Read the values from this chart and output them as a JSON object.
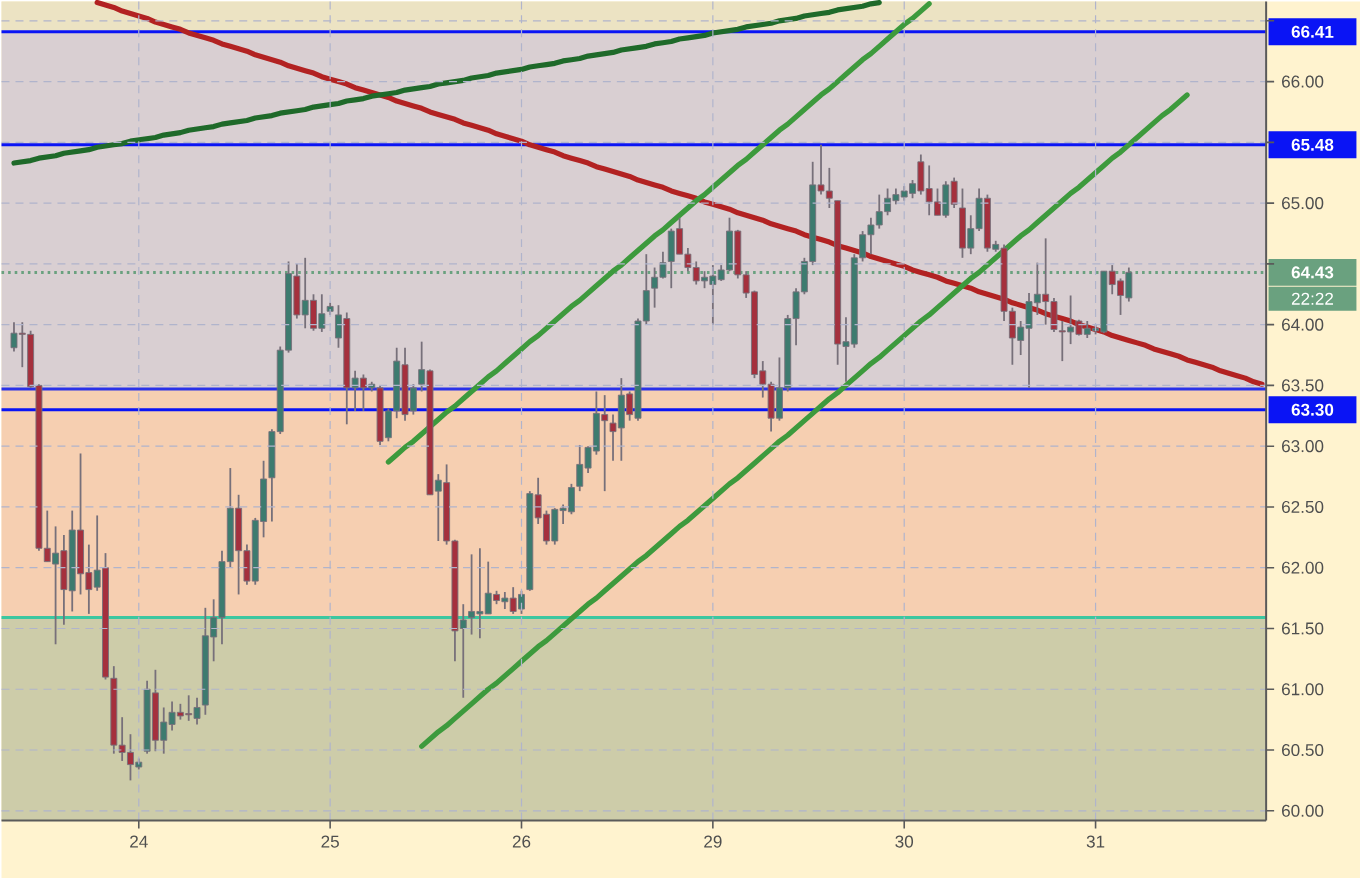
{
  "chart_data": {
    "type": "candlestick",
    "categories": [
      null,
      null,
      null,
      null,
      null,
      null,
      null,
      null,
      null,
      null,
      null,
      null,
      null,
      null,
      null,
      "24",
      null,
      null,
      null,
      null,
      null,
      null,
      null,
      null,
      null,
      null,
      null,
      null,
      null,
      null,
      null,
      null,
      null,
      null,
      null,
      null,
      null,
      null,
      "25",
      null,
      null,
      null,
      null,
      null,
      null,
      null,
      null,
      null,
      null,
      null,
      null,
      null,
      null,
      null,
      null,
      null,
      null,
      null,
      null,
      null,
      null,
      "26",
      null,
      null,
      null,
      null,
      null,
      null,
      null,
      null,
      null,
      null,
      null,
      null,
      null,
      null,
      null,
      null,
      null,
      null,
      null,
      null,
      null,
      null,
      "29",
      null,
      null,
      null,
      null,
      null,
      null,
      null,
      null,
      null,
      null,
      null,
      null,
      null,
      null,
      null,
      null,
      null,
      null,
      null,
      null,
      null,
      null,
      "30",
      null,
      null,
      null,
      null,
      null,
      null,
      null,
      null,
      null,
      null,
      null,
      null,
      null,
      null,
      null,
      null,
      null,
      null,
      null,
      null,
      null,
      null,
      "31",
      null,
      null,
      null,
      null,
      null,
      null,
      null,
      null,
      null,
      null,
      null,
      null,
      null,
      null,
      null,
      null,
      null,
      null,
      null,
      null
    ],
    "ohlc": [
      [
        63.81,
        64.02,
        63.78,
        63.93
      ],
      [
        63.93,
        64.02,
        63.65,
        63.92
      ],
      [
        63.92,
        63.95,
        63.48,
        63.49
      ],
      [
        63.5,
        63.51,
        62.14,
        62.16
      ],
      [
        62.16,
        62.47,
        62.05,
        62.05
      ],
      [
        62.03,
        62.34,
        61.37,
        62.12
      ],
      [
        62.14,
        62.27,
        61.53,
        61.82
      ],
      [
        61.81,
        62.47,
        61.64,
        62.31
      ],
      [
        62.31,
        62.94,
        61.78,
        61.95
      ],
      [
        61.96,
        62.19,
        61.62,
        61.82
      ],
      [
        61.84,
        62.43,
        61.81,
        61.98
      ],
      [
        62.0,
        62.12,
        61.08,
        61.1
      ],
      [
        61.09,
        61.19,
        60.47,
        60.54
      ],
      [
        60.54,
        60.77,
        60.41,
        60.48
      ],
      [
        60.48,
        60.63,
        60.25,
        60.38
      ],
      [
        60.36,
        60.43,
        60.34,
        60.4
      ],
      [
        60.49,
        61.07,
        60.47,
        61.0
      ],
      [
        60.97,
        61.16,
        60.49,
        60.58
      ],
      [
        60.58,
        60.85,
        60.47,
        60.73
      ],
      [
        60.71,
        60.9,
        60.66,
        60.81
      ],
      [
        60.81,
        60.88,
        60.75,
        60.78
      ],
      [
        60.8,
        60.95,
        60.74,
        60.79
      ],
      [
        60.76,
        60.93,
        60.71,
        60.85
      ],
      [
        60.87,
        61.67,
        60.79,
        61.44
      ],
      [
        61.43,
        61.74,
        61.23,
        61.59
      ],
      [
        61.59,
        62.14,
        61.37,
        62.05
      ],
      [
        62.05,
        62.82,
        62.0,
        62.49
      ],
      [
        62.49,
        62.6,
        61.78,
        62.14
      ],
      [
        62.14,
        62.19,
        61.86,
        61.89
      ],
      [
        61.89,
        62.41,
        61.86,
        62.39
      ],
      [
        62.38,
        62.88,
        62.25,
        62.73
      ],
      [
        62.74,
        63.14,
        62.38,
        63.12
      ],
      [
        63.12,
        63.82,
        63.1,
        63.79
      ],
      [
        63.79,
        64.52,
        63.77,
        64.42
      ],
      [
        64.4,
        64.5,
        64.05,
        64.08
      ],
      [
        64.08,
        64.55,
        63.97,
        64.2
      ],
      [
        64.2,
        64.25,
        63.95,
        63.97
      ],
      [
        63.97,
        64.25,
        63.94,
        64.09
      ],
      [
        64.11,
        64.18,
        64.08,
        64.15
      ],
      [
        63.89,
        64.16,
        63.81,
        64.08
      ],
      [
        64.05,
        64.1,
        63.18,
        63.48
      ],
      [
        63.48,
        63.62,
        63.29,
        63.56
      ],
      [
        63.56,
        63.59,
        63.29,
        63.48
      ],
      [
        63.48,
        63.53,
        63.45,
        63.51
      ],
      [
        63.48,
        63.5,
        63.01,
        63.04
      ],
      [
        63.07,
        63.31,
        63.04,
        63.29
      ],
      [
        63.29,
        63.81,
        63.23,
        63.7
      ],
      [
        63.67,
        63.81,
        63.21,
        63.26
      ],
      [
        63.29,
        63.51,
        63.26,
        63.48
      ],
      [
        63.51,
        63.86,
        63.45,
        63.63
      ],
      [
        63.62,
        63.63,
        62.6,
        62.6
      ],
      [
        62.63,
        62.77,
        62.22,
        62.72
      ],
      [
        62.7,
        62.85,
        62.19,
        62.22
      ],
      [
        62.22,
        62.23,
        61.23,
        61.48
      ],
      [
        61.5,
        61.7,
        60.93,
        61.57
      ],
      [
        61.59,
        62.11,
        61.45,
        61.64
      ],
      [
        61.62,
        62.16,
        61.42,
        61.64
      ],
      [
        61.62,
        62.05,
        61.62,
        61.79
      ],
      [
        61.78,
        61.81,
        61.7,
        61.73
      ],
      [
        61.72,
        61.8,
        61.66,
        61.75
      ],
      [
        61.75,
        61.84,
        61.62,
        61.64
      ],
      [
        61.66,
        61.81,
        61.62,
        61.78
      ],
      [
        61.82,
        62.63,
        61.81,
        62.61
      ],
      [
        62.6,
        62.74,
        62.36,
        62.41
      ],
      [
        62.44,
        62.47,
        62.19,
        62.22
      ],
      [
        62.22,
        62.49,
        62.19,
        62.48
      ],
      [
        62.47,
        62.52,
        62.36,
        62.49
      ],
      [
        62.46,
        62.69,
        62.44,
        62.66
      ],
      [
        62.67,
        63.01,
        62.63,
        62.85
      ],
      [
        62.82,
        63.0,
        62.78,
        62.99
      ],
      [
        62.96,
        63.45,
        62.93,
        63.27
      ],
      [
        63.26,
        63.42,
        62.63,
        63.21
      ],
      [
        63.19,
        63.26,
        62.88,
        63.12
      ],
      [
        63.15,
        63.56,
        62.88,
        63.42
      ],
      [
        63.43,
        63.45,
        63.21,
        63.26
      ],
      [
        63.23,
        64.05,
        63.21,
        64.03
      ],
      [
        64.03,
        64.58,
        64.0,
        64.28
      ],
      [
        64.3,
        64.47,
        64.14,
        64.39
      ],
      [
        64.39,
        64.6,
        64.38,
        64.51
      ],
      [
        64.52,
        64.79,
        64.3,
        64.77
      ],
      [
        64.79,
        64.88,
        64.58,
        64.58
      ],
      [
        64.58,
        64.63,
        64.44,
        64.47
      ],
      [
        64.47,
        64.52,
        64.33,
        64.36
      ],
      [
        64.36,
        64.44,
        64.3,
        64.39
      ],
      [
        64.33,
        64.49,
        64.0,
        64.4
      ],
      [
        64.37,
        64.49,
        64.36,
        64.45
      ],
      [
        64.45,
        64.88,
        64.44,
        64.77
      ],
      [
        64.77,
        64.78,
        64.38,
        64.41
      ],
      [
        64.41,
        64.44,
        64.22,
        64.26
      ],
      [
        64.27,
        64.28,
        63.56,
        63.59
      ],
      [
        63.62,
        63.7,
        63.4,
        63.51
      ],
      [
        63.51,
        63.53,
        63.12,
        63.23
      ],
      [
        63.23,
        63.73,
        63.21,
        63.48
      ],
      [
        63.48,
        64.08,
        63.45,
        64.05
      ],
      [
        64.05,
        64.3,
        63.83,
        64.27
      ],
      [
        64.27,
        64.55,
        64.25,
        64.52
      ],
      [
        64.52,
        65.34,
        64.49,
        65.15
      ],
      [
        65.15,
        65.48,
        65.07,
        65.1
      ],
      [
        65.1,
        65.29,
        64.96,
        65.04
      ],
      [
        65.02,
        65.02,
        63.67,
        63.84
      ],
      [
        63.82,
        64.06,
        63.53,
        63.86
      ],
      [
        63.84,
        64.58,
        63.81,
        64.55
      ],
      [
        64.55,
        64.77,
        64.52,
        64.74
      ],
      [
        64.74,
        64.88,
        64.58,
        64.82
      ],
      [
        64.82,
        65.07,
        64.79,
        64.93
      ],
      [
        64.93,
        65.12,
        64.9,
        65.04
      ],
      [
        65.02,
        65.12,
        64.99,
        65.07
      ],
      [
        65.05,
        65.14,
        65.02,
        65.1
      ],
      [
        65.08,
        65.19,
        65.04,
        65.16
      ],
      [
        65.34,
        65.4,
        65.07,
        65.1
      ],
      [
        65.12,
        65.31,
        64.9,
        65.01
      ],
      [
        65.01,
        65.12,
        64.9,
        64.9
      ],
      [
        64.9,
        65.18,
        64.88,
        65.15
      ],
      [
        65.18,
        65.21,
        64.96,
        64.99
      ],
      [
        64.96,
        65.12,
        64.55,
        64.63
      ],
      [
        64.63,
        64.9,
        64.58,
        64.79
      ],
      [
        64.79,
        65.12,
        64.77,
        65.04
      ],
      [
        65.04,
        65.07,
        64.6,
        64.63
      ],
      [
        64.62,
        64.69,
        64.6,
        64.66
      ],
      [
        64.63,
        64.66,
        64.03,
        64.11
      ],
      [
        64.11,
        64.14,
        63.67,
        63.89
      ],
      [
        63.87,
        64.03,
        63.75,
        63.98
      ],
      [
        63.97,
        64.26,
        63.48,
        64.19
      ],
      [
        64.18,
        64.51,
        64.08,
        64.25
      ],
      [
        64.25,
        64.71,
        64.0,
        64.19
      ],
      [
        64.19,
        64.22,
        63.94,
        63.96
      ],
      [
        63.95,
        64.03,
        63.7,
        63.94
      ],
      [
        63.94,
        64.24,
        63.84,
        63.98
      ],
      [
        64.03,
        64.04,
        63.91,
        63.92
      ],
      [
        63.92,
        64.03,
        63.89,
        63.97
      ],
      [
        63.95,
        64.0,
        63.92,
        63.97
      ],
      [
        63.94,
        64.44,
        63.93,
        64.44
      ],
      [
        64.44,
        64.49,
        64.25,
        64.33
      ],
      [
        64.36,
        64.38,
        64.08,
        64.24
      ],
      [
        64.22,
        64.47,
        64.19,
        64.43
      ],
      null,
      null,
      null,
      null,
      null,
      null,
      null,
      null,
      null,
      null,
      null,
      null,
      null,
      null,
      null,
      null
    ],
    "colors": [
      "#3d7b6f",
      "#a5303d",
      "#a5303d",
      "#a5303d",
      "#a5303d",
      "#3d7b6f",
      "#a5303d",
      "#3d7b6f",
      "#a5303d",
      "#a5303d",
      "#3d7b6f",
      "#a5303d",
      "#a5303d",
      "#a5303d",
      "#a5303d",
      "#3d7b6f",
      "#3d7b6f",
      "#a5303d",
      "#3d7b6f",
      "#3d7b6f",
      "#a5303d",
      "#a5303d",
      "#3d7b6f",
      "#3d7b6f",
      "#3d7b6f",
      "#3d7b6f",
      "#3d7b6f",
      "#a5303d",
      "#a5303d",
      "#3d7b6f",
      "#3d7b6f",
      "#3d7b6f",
      "#3d7b6f",
      "#3d7b6f",
      "#a5303d",
      "#3d7b6f",
      "#a5303d",
      "#3d7b6f",
      "#3d7b6f",
      "#3d7b6f",
      "#a5303d",
      "#3d7b6f",
      "#a5303d",
      "#3d7b6f",
      "#a5303d",
      "#3d7b6f",
      "#3d7b6f",
      "#a5303d",
      "#3d7b6f",
      "#3d7b6f",
      "#a5303d",
      "#3d7b6f",
      "#a5303d",
      "#a5303d",
      "#3d7b6f",
      "#3d7b6f",
      "#3d7b6f",
      "#3d7b6f",
      "#a5303d",
      "#3d7b6f",
      "#a5303d",
      "#3d7b6f",
      "#3d7b6f",
      "#a5303d",
      "#a5303d",
      "#3d7b6f",
      "#3d7b6f",
      "#3d7b6f",
      "#3d7b6f",
      "#3d7b6f",
      "#3d7b6f",
      "#a5303d",
      "#a5303d",
      "#3d7b6f",
      "#a5303d",
      "#3d7b6f",
      "#3d7b6f",
      "#3d7b6f",
      "#3d7b6f",
      "#3d7b6f",
      "#a5303d",
      "#a5303d",
      "#a5303d",
      "#3d7b6f",
      "#3d7b6f",
      "#3d7b6f",
      "#3d7b6f",
      "#a5303d",
      "#a5303d",
      "#a5303d",
      "#a5303d",
      "#a5303d",
      "#3d7b6f",
      "#3d7b6f",
      "#3d7b6f",
      "#3d7b6f",
      "#3d7b6f",
      "#a5303d",
      "#a5303d",
      "#a5303d",
      "#3d7b6f",
      "#3d7b6f",
      "#3d7b6f",
      "#3d7b6f",
      "#3d7b6f",
      "#3d7b6f",
      "#3d7b6f",
      "#3d7b6f",
      "#3d7b6f",
      "#a5303d",
      "#a5303d",
      "#a5303d",
      "#3d7b6f",
      "#a5303d",
      "#a5303d",
      "#3d7b6f",
      "#3d7b6f",
      "#a5303d",
      "#3d7b6f",
      "#a5303d",
      "#a5303d",
      "#3d7b6f",
      "#3d7b6f",
      "#3d7b6f",
      "#a5303d",
      "#a5303d",
      "#a5303d",
      "#3d7b6f",
      "#a5303d",
      "#3d7b6f",
      "#3d7b6f",
      "#3d7b6f",
      "#a5303d",
      "#a5303d",
      "#3d7b6f",
      null,
      null,
      null,
      null,
      null,
      null,
      null,
      null,
      null,
      null,
      null,
      null,
      null,
      null,
      null,
      null
    ],
    "series": [
      {
        "type": "line",
        "color": "#b22222",
        "values": [
          null,
          null,
          null,
          null,
          null,
          null,
          null,
          null,
          null,
          null,
          66.65,
          66.63,
          66.61,
          66.58,
          66.56,
          66.54,
          66.52,
          66.49,
          66.47,
          66.45,
          66.43,
          66.4,
          66.38,
          66.36,
          66.34,
          66.31,
          66.29,
          66.27,
          66.25,
          66.22,
          66.2,
          66.18,
          66.16,
          66.13,
          66.11,
          66.09,
          66.07,
          66.04,
          66.02,
          66.0,
          65.98,
          65.95,
          65.93,
          65.91,
          65.89,
          65.87,
          65.84,
          65.82,
          65.8,
          65.78,
          65.75,
          65.73,
          65.71,
          65.69,
          65.66,
          65.64,
          65.62,
          65.6,
          65.57,
          65.55,
          65.53,
          65.51,
          65.48,
          65.46,
          65.44,
          65.42,
          65.39,
          65.37,
          65.35,
          65.33,
          65.3,
          65.28,
          65.26,
          65.24,
          65.22,
          65.19,
          65.17,
          65.15,
          65.13,
          65.1,
          65.08,
          65.06,
          65.04,
          65.01,
          64.99,
          64.97,
          64.95,
          64.92,
          64.9,
          64.88,
          64.86,
          64.83,
          64.81,
          64.79,
          64.77,
          64.74,
          64.72,
          64.7,
          64.68,
          64.65,
          64.63,
          64.61,
          64.59,
          64.56,
          64.54,
          64.52,
          64.5,
          64.48,
          64.45,
          64.43,
          64.41,
          64.39,
          64.36,
          64.34,
          64.32,
          64.3,
          64.27,
          64.25,
          64.23,
          64.21,
          64.18,
          64.16,
          64.14,
          64.12,
          64.09,
          64.07,
          64.05,
          64.03,
          64.0,
          63.98,
          63.96,
          63.94,
          63.91,
          63.89,
          63.87,
          63.85,
          63.83,
          63.8,
          63.78,
          63.76,
          63.74,
          63.71,
          63.69,
          63.67,
          63.65,
          63.62,
          63.6,
          63.58,
          63.56,
          63.53,
          63.51
        ]
      },
      {
        "type": "line",
        "color": "#1f6a2a",
        "values": [
          65.33,
          65.34,
          65.35,
          65.37,
          65.38,
          65.39,
          65.41,
          65.42,
          65.43,
          65.44,
          65.46,
          65.47,
          65.48,
          65.49,
          65.51,
          65.52,
          65.53,
          65.54,
          65.56,
          65.57,
          65.58,
          65.6,
          65.61,
          65.62,
          65.63,
          65.65,
          65.66,
          65.67,
          65.68,
          65.7,
          65.71,
          65.72,
          65.74,
          65.75,
          65.76,
          65.77,
          65.79,
          65.8,
          65.81,
          65.82,
          65.84,
          65.85,
          65.86,
          65.88,
          65.89,
          65.9,
          65.91,
          65.93,
          65.94,
          65.95,
          65.96,
          65.98,
          65.99,
          66.0,
          66.01,
          66.03,
          66.04,
          66.05,
          66.07,
          66.08,
          66.09,
          66.1,
          66.12,
          66.13,
          66.14,
          66.15,
          66.17,
          66.18,
          66.19,
          66.21,
          66.22,
          66.23,
          66.24,
          66.26,
          66.27,
          66.28,
          66.29,
          66.31,
          66.32,
          66.33,
          66.35,
          66.36,
          66.37,
          66.38,
          66.4,
          66.41,
          66.42,
          66.43,
          66.45,
          66.46,
          66.47,
          66.48,
          66.5,
          66.51,
          66.52,
          66.54,
          66.55,
          66.56,
          66.57,
          66.59,
          66.6,
          66.61,
          66.62,
          66.64,
          66.65,
          null,
          null,
          null,
          null,
          null,
          null,
          null,
          null,
          null,
          null,
          null,
          null,
          null,
          null,
          null,
          null,
          null,
          null,
          null,
          null,
          null,
          null,
          null,
          null,
          null,
          null,
          null,
          null,
          null,
          null,
          null,
          null,
          null,
          null,
          null,
          null,
          null,
          null,
          null,
          null,
          null,
          null,
          null,
          null,
          null,
          null
        ]
      },
      {
        "type": "line",
        "color": "#3d9a3d",
        "values": [
          null,
          null,
          null,
          null,
          null,
          null,
          null,
          null,
          null,
          null,
          null,
          null,
          null,
          null,
          null,
          null,
          null,
          null,
          null,
          null,
          null,
          null,
          null,
          null,
          null,
          null,
          null,
          null,
          null,
          null,
          null,
          null,
          null,
          null,
          null,
          null,
          null,
          null,
          null,
          null,
          null,
          null,
          null,
          null,
          null,
          62.87,
          62.93,
          62.99,
          63.04,
          63.1,
          63.16,
          63.22,
          63.28,
          63.33,
          63.39,
          63.45,
          63.51,
          63.57,
          63.62,
          63.68,
          63.74,
          63.8,
          63.86,
          63.91,
          63.97,
          64.03,
          64.09,
          64.15,
          64.2,
          64.26,
          64.32,
          64.38,
          64.44,
          64.49,
          64.55,
          64.61,
          64.67,
          64.73,
          64.78,
          64.84,
          64.9,
          64.96,
          65.02,
          65.07,
          65.13,
          65.19,
          65.25,
          65.31,
          65.36,
          65.42,
          65.48,
          65.54,
          65.6,
          65.65,
          65.71,
          65.77,
          65.83,
          65.89,
          65.94,
          66.0,
          66.06,
          66.12,
          66.18,
          66.23,
          66.29,
          66.35,
          66.41,
          66.47,
          66.52,
          66.58,
          66.64,
          null,
          null,
          null,
          null,
          null,
          null,
          null,
          null,
          null,
          null,
          null,
          null,
          null,
          null,
          null,
          null,
          null,
          null,
          null,
          null,
          null,
          null,
          null,
          null,
          null,
          null,
          null,
          null,
          null,
          null,
          null,
          null,
          null,
          null,
          null,
          null,
          null,
          null,
          null,
          null
        ]
      },
      {
        "type": "line",
        "color": "#3d9a3d",
        "values": [
          null,
          null,
          null,
          null,
          null,
          null,
          null,
          null,
          null,
          null,
          null,
          null,
          null,
          null,
          null,
          null,
          null,
          null,
          null,
          null,
          null,
          null,
          null,
          null,
          null,
          null,
          null,
          null,
          null,
          null,
          null,
          null,
          null,
          null,
          null,
          null,
          null,
          null,
          null,
          null,
          null,
          null,
          null,
          null,
          null,
          null,
          null,
          null,
          null,
          60.53,
          60.59,
          60.65,
          60.7,
          60.76,
          60.82,
          60.88,
          60.94,
          61.0,
          61.05,
          61.11,
          61.17,
          61.23,
          61.29,
          61.35,
          61.4,
          61.46,
          61.52,
          61.58,
          61.64,
          61.7,
          61.75,
          61.81,
          61.87,
          61.93,
          61.99,
          62.05,
          62.1,
          62.16,
          62.22,
          62.28,
          62.34,
          62.39,
          62.45,
          62.51,
          62.57,
          62.63,
          62.69,
          62.74,
          62.8,
          62.86,
          62.92,
          62.98,
          63.04,
          63.09,
          63.15,
          63.21,
          63.27,
          63.33,
          63.39,
          63.44,
          63.5,
          63.56,
          63.62,
          63.68,
          63.73,
          63.79,
          63.85,
          63.91,
          63.97,
          64.03,
          64.08,
          64.14,
          64.2,
          64.26,
          64.32,
          64.38,
          64.43,
          64.49,
          64.55,
          64.61,
          64.67,
          64.73,
          64.78,
          64.84,
          64.9,
          64.96,
          65.02,
          65.08,
          65.13,
          65.19,
          65.25,
          65.31,
          65.37,
          65.42,
          65.48,
          65.54,
          65.6,
          65.66,
          65.72,
          65.77,
          65.83,
          65.89,
          null,
          null,
          null,
          null,
          null,
          null,
          null,
          null,
          null
        ]
      }
    ],
    "ylim": [
      59.92,
      66.66
    ],
    "yticks": [
      {
        "value": 60,
        "label": "60.00"
      },
      {
        "value": 60.5,
        "label": "60.50"
      },
      {
        "value": 61,
        "label": "61.00"
      },
      {
        "value": 61.5,
        "label": "61.50"
      },
      {
        "value": 62,
        "label": "62.00"
      },
      {
        "value": 62.5,
        "label": "62.50"
      },
      {
        "value": 63,
        "label": "63.00"
      },
      {
        "value": 63.5,
        "label": "63.50"
      },
      {
        "value": 64,
        "label": "64.00"
      },
      {
        "value": 64.5,
        "label": null
      },
      {
        "value": 65,
        "label": "65.00"
      },
      {
        "value": 65.5,
        "label": null
      },
      {
        "value": 66,
        "label": "66.00"
      },
      {
        "value": 66.5,
        "label": null
      }
    ],
    "grid": true,
    "bands": [
      {
        "axis": "y",
        "from": 66.41,
        "to": 66.66,
        "color": "#ece3c3"
      },
      {
        "axis": "y",
        "from": 63.47,
        "to": 66.41,
        "color": "#d9cfd2"
      },
      {
        "axis": "y",
        "from": 61.59,
        "to": 63.47,
        "color": "#f6cfb1"
      },
      {
        "axis": "y",
        "from": 59.92,
        "to": 61.59,
        "color": "#cdcca9"
      }
    ],
    "ref_lines": [
      {
        "axis": "y",
        "value": 66.41,
        "label": "66.41",
        "color": "#0a14f5"
      },
      {
        "axis": "y",
        "value": 65.48,
        "label": "65.48",
        "color": "#0a14f5"
      },
      {
        "axis": "y",
        "value": 64.43,
        "label": "64.43",
        "color": "#6aa17f",
        "line_style": "dotted"
      },
      {
        "axis": "y",
        "value": 63.47,
        "color": "#2a32e8"
      },
      {
        "axis": "y",
        "value": 63.3,
        "label": "63.30",
        "color": "#0a14f5"
      },
      {
        "axis": "y",
        "value": 61.59,
        "color": "#3cc7a0"
      }
    ],
    "annotations": [
      "22:22"
    ]
  }
}
